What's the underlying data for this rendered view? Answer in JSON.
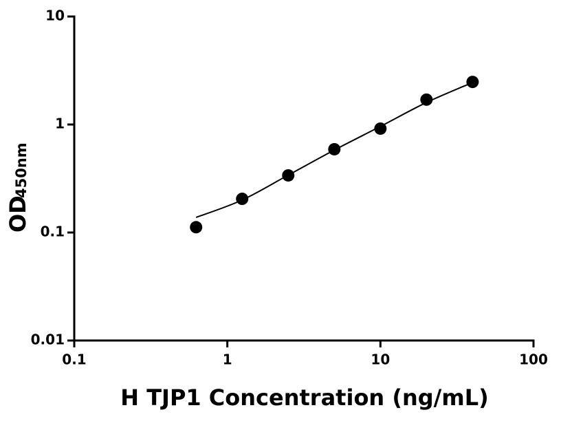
{
  "chart_data": {
    "type": "scatter",
    "x_label": "H TJP1 Concentration (ng/mL)",
    "y_label": "OD",
    "y_label_sub": "450nm",
    "x_log": true,
    "y_log": true,
    "xlim": [
      0.1,
      100
    ],
    "xticks": [
      0.1,
      1,
      10,
      100
    ],
    "ylim": [
      0.01,
      10
    ],
    "yticks": [
      0.01,
      0.1,
      1,
      10
    ],
    "series": [
      {
        "kind": "points",
        "color": "#000000",
        "x": [
          0.625,
          1.25,
          2.5,
          5,
          10,
          20,
          40
        ],
        "values": [
          0.112,
          0.205,
          0.338,
          0.59,
          0.916,
          1.7,
          2.48
        ]
      },
      {
        "kind": "curve",
        "color": "#000000",
        "x": [
          0.625,
          1.25,
          2.5,
          5,
          10,
          20,
          40
        ],
        "values": [
          0.138,
          0.2,
          0.34,
          0.58,
          0.96,
          1.6,
          2.45
        ]
      }
    ]
  }
}
